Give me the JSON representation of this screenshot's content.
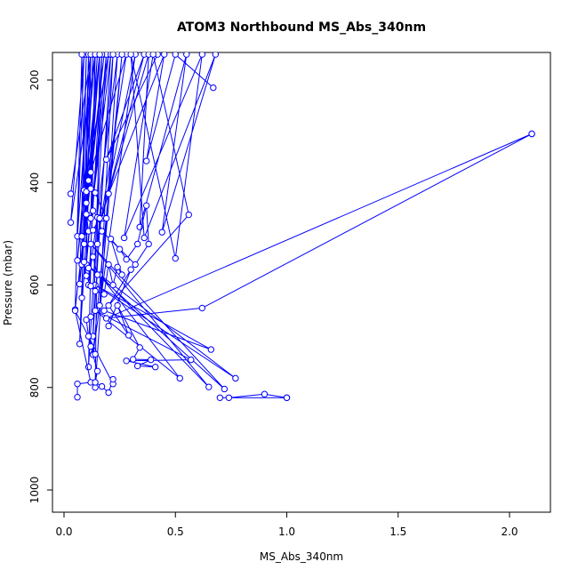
{
  "chart_data": {
    "type": "line",
    "title": "ATOM3 Northbound MS_Abs_340nm",
    "xlabel": "MS_Abs_340nm",
    "ylabel": "Pressure (mbar)",
    "xlim": [
      0,
      2.2
    ],
    "ylim": [
      1040,
      150
    ],
    "y_reversed": true,
    "x_ticks": [
      0.0,
      0.5,
      1.0,
      1.5,
      2.0
    ],
    "x_tick_labels": [
      "0.0",
      "0.5",
      "1.0",
      "1.5",
      "2.0"
    ],
    "y_ticks": [
      200,
      400,
      600,
      800,
      1000
    ],
    "y_tick_labels": [
      "200",
      "400",
      "600",
      "800",
      "1000"
    ],
    "grid": false,
    "legend": "none",
    "series_color": "#0000ff",
    "marker": "open-circle",
    "series": [
      {
        "points": [
          {
            "x": 0.03,
            "y": 422
          },
          {
            "x": 0.12,
            "y": 150
          },
          {
            "x": 0.06,
            "y": 505
          },
          {
            "x": 0.09,
            "y": 150
          },
          {
            "x": 0.03,
            "y": 478
          },
          {
            "x": 0.14,
            "y": 150
          },
          {
            "x": 0.06,
            "y": 552
          },
          {
            "x": 0.16,
            "y": 150
          },
          {
            "x": 0.08,
            "y": 560
          },
          {
            "x": 0.1,
            "y": 150
          },
          {
            "x": 0.07,
            "y": 598
          },
          {
            "x": 0.18,
            "y": 150
          },
          {
            "x": 0.05,
            "y": 648
          },
          {
            "x": 0.08,
            "y": 150
          },
          {
            "x": 0.09,
            "y": 415
          },
          {
            "x": 0.2,
            "y": 150
          },
          {
            "x": 0.08,
            "y": 625
          },
          {
            "x": 0.11,
            "y": 150
          },
          {
            "x": 0.1,
            "y": 440
          },
          {
            "x": 0.13,
            "y": 150
          },
          {
            "x": 0.09,
            "y": 520
          },
          {
            "x": 0.15,
            "y": 150
          },
          {
            "x": 0.07,
            "y": 715
          },
          {
            "x": 0.12,
            "y": 150
          },
          {
            "x": 0.1,
            "y": 560
          },
          {
            "x": 0.19,
            "y": 150
          },
          {
            "x": 0.11,
            "y": 760
          },
          {
            "x": 0.14,
            "y": 150
          },
          {
            "x": 0.12,
            "y": 470
          },
          {
            "x": 0.21,
            "y": 150
          },
          {
            "x": 0.13,
            "y": 700
          },
          {
            "x": 0.17,
            "y": 150
          },
          {
            "x": 0.11,
            "y": 600
          },
          {
            "x": 0.24,
            "y": 150
          },
          {
            "x": 0.14,
            "y": 800
          },
          {
            "x": 0.16,
            "y": 150
          },
          {
            "x": 0.12,
            "y": 380
          },
          {
            "x": 0.28,
            "y": 150
          },
          {
            "x": 0.15,
            "y": 520
          },
          {
            "x": 0.22,
            "y": 150
          },
          {
            "x": 0.16,
            "y": 640
          },
          {
            "x": 0.26,
            "y": 150
          },
          {
            "x": 0.13,
            "y": 735
          },
          {
            "x": 0.32,
            "y": 150
          },
          {
            "x": 0.17,
            "y": 470
          },
          {
            "x": 0.36,
            "y": 150
          },
          {
            "x": 0.19,
            "y": 355
          },
          {
            "x": 0.42,
            "y": 150
          }
        ]
      },
      {
        "points": [
          {
            "x": 0.67,
            "y": 215
          },
          {
            "x": 0.5,
            "y": 150
          },
          {
            "x": 0.37,
            "y": 358
          },
          {
            "x": 0.45,
            "y": 150
          },
          {
            "x": 0.2,
            "y": 422
          },
          {
            "x": 0.38,
            "y": 150
          },
          {
            "x": 0.34,
            "y": 487
          },
          {
            "x": 0.55,
            "y": 150
          },
          {
            "x": 0.44,
            "y": 497
          },
          {
            "x": 0.68,
            "y": 150
          },
          {
            "x": 0.36,
            "y": 508
          },
          {
            "x": 0.3,
            "y": 150
          },
          {
            "x": 0.5,
            "y": 548
          },
          {
            "x": 0.62,
            "y": 150
          },
          {
            "x": 0.27,
            "y": 508
          },
          {
            "x": 0.4,
            "y": 150
          },
          {
            "x": 0.56,
            "y": 463
          },
          {
            "x": 0.18,
            "y": 650
          },
          {
            "x": 0.66,
            "y": 726
          },
          {
            "x": 0.14,
            "y": 600
          },
          {
            "x": 0.77,
            "y": 782
          },
          {
            "x": 0.1,
            "y": 560
          },
          {
            "x": 0.72,
            "y": 803
          },
          {
            "x": 0.12,
            "y": 520
          },
          {
            "x": 0.65,
            "y": 799
          },
          {
            "x": 0.16,
            "y": 580
          },
          {
            "x": 0.52,
            "y": 782
          },
          {
            "x": 0.14,
            "y": 650
          },
          {
            "x": 0.57,
            "y": 746
          },
          {
            "x": 0.28,
            "y": 748
          },
          {
            "x": 0.41,
            "y": 760
          },
          {
            "x": 0.33,
            "y": 758
          },
          {
            "x": 0.39,
            "y": 746
          },
          {
            "x": 0.31,
            "y": 745
          },
          {
            "x": 0.34,
            "y": 722
          },
          {
            "x": 0.24,
            "y": 640
          },
          {
            "x": 0.29,
            "y": 698
          },
          {
            "x": 0.2,
            "y": 640
          },
          {
            "x": 0.3,
            "y": 570
          },
          {
            "x": 0.2,
            "y": 680
          }
        ]
      },
      {
        "points": [
          {
            "x": 2.1,
            "y": 305
          },
          {
            "x": 0.19,
            "y": 665
          },
          {
            "x": 0.62,
            "y": 645
          },
          {
            "x": 2.1,
            "y": 305
          }
        ]
      },
      {
        "points": [
          {
            "x": 1.0,
            "y": 820
          },
          {
            "x": 0.7,
            "y": 820
          },
          {
            "x": 0.74,
            "y": 820
          },
          {
            "x": 0.9,
            "y": 813
          },
          {
            "x": 1.0,
            "y": 820
          }
        ]
      },
      {
        "points": [
          {
            "x": 0.06,
            "y": 819
          },
          {
            "x": 0.06,
            "y": 793
          },
          {
            "x": 0.12,
            "y": 790
          },
          {
            "x": 0.05,
            "y": 650
          },
          {
            "x": 0.22,
            "y": 793
          },
          {
            "x": 0.22,
            "y": 784
          },
          {
            "x": 0.2,
            "y": 810
          },
          {
            "x": 0.17,
            "y": 798
          },
          {
            "x": 0.14,
            "y": 790
          },
          {
            "x": 0.15,
            "y": 768
          },
          {
            "x": 0.13,
            "y": 736
          },
          {
            "x": 0.12,
            "y": 720
          },
          {
            "x": 0.14,
            "y": 735
          },
          {
            "x": 0.11,
            "y": 700
          },
          {
            "x": 0.1,
            "y": 668
          },
          {
            "x": 0.12,
            "y": 662
          }
        ]
      },
      {
        "points": [
          {
            "x": 0.09,
            "y": 555
          },
          {
            "x": 0.1,
            "y": 582
          },
          {
            "x": 0.12,
            "y": 602
          },
          {
            "x": 0.11,
            "y": 567
          },
          {
            "x": 0.13,
            "y": 545
          },
          {
            "x": 0.15,
            "y": 580
          },
          {
            "x": 0.14,
            "y": 612
          },
          {
            "x": 0.18,
            "y": 618
          },
          {
            "x": 0.2,
            "y": 560
          },
          {
            "x": 0.22,
            "y": 600
          },
          {
            "x": 0.24,
            "y": 565
          },
          {
            "x": 0.26,
            "y": 580
          },
          {
            "x": 0.21,
            "y": 510
          },
          {
            "x": 0.25,
            "y": 530
          },
          {
            "x": 0.28,
            "y": 550
          },
          {
            "x": 0.33,
            "y": 520
          },
          {
            "x": 0.37,
            "y": 445
          },
          {
            "x": 0.38,
            "y": 520
          },
          {
            "x": 0.32,
            "y": 560
          },
          {
            "x": 0.17,
            "y": 495
          },
          {
            "x": 0.15,
            "y": 468
          },
          {
            "x": 0.13,
            "y": 455
          },
          {
            "x": 0.1,
            "y": 462
          },
          {
            "x": 0.11,
            "y": 495
          },
          {
            "x": 0.08,
            "y": 505
          },
          {
            "x": 0.13,
            "y": 493
          },
          {
            "x": 0.16,
            "y": 470
          },
          {
            "x": 0.19,
            "y": 470
          },
          {
            "x": 0.14,
            "y": 420
          },
          {
            "x": 0.11,
            "y": 396
          },
          {
            "x": 0.1,
            "y": 418
          },
          {
            "x": 0.12,
            "y": 412
          }
        ]
      }
    ]
  }
}
